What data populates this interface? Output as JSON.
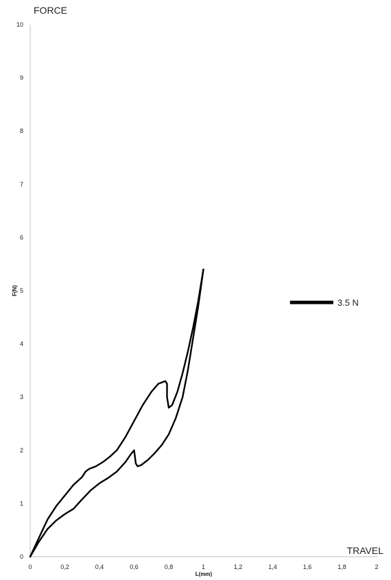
{
  "chart_data": {
    "type": "line",
    "title": "",
    "corner_labels": {
      "y": "FORCE",
      "x": "TRAVEL"
    },
    "xlabel": "L(mm)",
    "ylabel": "F(N)",
    "xlim": [
      0,
      2
    ],
    "ylim": [
      0,
      10
    ],
    "xticks": [
      "0",
      "0,2",
      "0,4",
      "0,6",
      "0,8",
      "1",
      "1,2",
      "1,4",
      "1,6",
      "1,8",
      "2"
    ],
    "yticks": [
      "0",
      "1",
      "2",
      "3",
      "4",
      "5",
      "6",
      "7",
      "8",
      "9",
      "10"
    ],
    "grid": false,
    "series": [
      {
        "x": [
          0,
          0.05,
          0.1,
          0.15,
          0.2,
          0.25,
          0.3,
          0.32,
          0.34,
          0.38,
          0.42,
          0.46,
          0.5,
          0.55,
          0.6,
          0.65,
          0.7,
          0.74,
          0.78,
          0.79,
          0.79,
          0.8,
          0.82,
          0.85,
          0.88,
          0.91,
          0.94,
          0.97,
          1.0
        ],
        "y": [
          0,
          0.35,
          0.7,
          0.95,
          1.15,
          1.35,
          1.5,
          1.6,
          1.65,
          1.7,
          1.78,
          1.88,
          2.0,
          2.25,
          2.55,
          2.85,
          3.1,
          3.25,
          3.3,
          3.25,
          3.0,
          2.8,
          2.85,
          3.1,
          3.45,
          3.85,
          4.3,
          4.8,
          5.4
        ]
      },
      {
        "x": [
          0,
          0.05,
          0.1,
          0.15,
          0.2,
          0.25,
          0.3,
          0.35,
          0.4,
          0.45,
          0.5,
          0.55,
          0.58,
          0.6,
          0.61,
          0.62,
          0.64,
          0.68,
          0.72,
          0.76,
          0.8,
          0.84,
          0.88,
          0.91,
          0.94,
          0.97,
          1.0
        ],
        "y": [
          0,
          0.28,
          0.52,
          0.68,
          0.8,
          0.9,
          1.08,
          1.25,
          1.38,
          1.48,
          1.6,
          1.78,
          1.92,
          2.0,
          1.75,
          1.7,
          1.72,
          1.82,
          1.95,
          2.1,
          2.3,
          2.6,
          3.0,
          3.5,
          4.1,
          4.7,
          5.4
        ]
      }
    ],
    "reference_line": {
      "label": "3.5 N",
      "x_from": 1.5,
      "x_to": 1.75,
      "y": 4.78
    }
  }
}
